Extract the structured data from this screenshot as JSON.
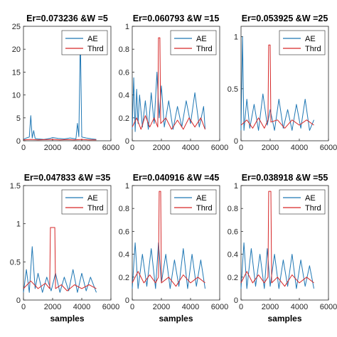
{
  "chart_data": [
    {
      "type": "line",
      "title": "Er=0.073236 &W =5",
      "xlabel": "",
      "ylabel": "",
      "xlim": [
        0,
        6000
      ],
      "ylim": [
        0,
        25
      ],
      "xticks": [
        "0",
        "2000",
        "4000",
        "6000"
      ],
      "yticks": [
        "0",
        "5",
        "10",
        "15",
        "20",
        "25"
      ],
      "legend": "top-right",
      "series": [
        {
          "name": "AE",
          "color": "#1f77b4",
          "points": [
            [
              0,
              0.3
            ],
            [
              200,
              0.6
            ],
            [
              400,
              0.8
            ],
            [
              500,
              5.5
            ],
            [
              600,
              0.6
            ],
            [
              700,
              2.2
            ],
            [
              800,
              0.5
            ],
            [
              1000,
              0.4
            ],
            [
              1400,
              0.3
            ],
            [
              1800,
              0.5
            ],
            [
              2000,
              0.7
            ],
            [
              2400,
              0.5
            ],
            [
              2800,
              0.4
            ],
            [
              3200,
              0.6
            ],
            [
              3600,
              0.4
            ],
            [
              3700,
              3.8
            ],
            [
              3800,
              0.9
            ],
            [
              3900,
              23.0
            ],
            [
              4000,
              0.8
            ],
            [
              4300,
              0.6
            ],
            [
              4700,
              0.4
            ],
            [
              5000,
              0.3
            ]
          ]
        },
        {
          "name": "Thrd",
          "color": "#d62728",
          "points": [
            [
              0,
              0.2
            ],
            [
              500,
              0.3
            ],
            [
              1000,
              0.2
            ],
            [
              1500,
              0.25
            ],
            [
              2000,
              0.3
            ],
            [
              2500,
              0.2
            ],
            [
              3000,
              0.25
            ],
            [
              3500,
              0.2
            ],
            [
              4000,
              0.3
            ],
            [
              4500,
              0.2
            ],
            [
              5000,
              0.2
            ]
          ]
        }
      ]
    },
    {
      "type": "line",
      "title": "Er=0.060793 &W =15",
      "xlabel": "",
      "ylabel": "",
      "xlim": [
        0,
        6000
      ],
      "ylim": [
        0,
        1
      ],
      "xticks": [
        "0",
        "2000",
        "4000",
        "6000"
      ],
      "yticks": [
        "0",
        "0.2",
        "0.4",
        "0.6",
        "0.8",
        "1"
      ],
      "legend": "top-right",
      "series": [
        {
          "name": "AE",
          "color": "#1f77b4",
          "points": [
            [
              0,
              0.1
            ],
            [
              100,
              0.55
            ],
            [
              200,
              0.08
            ],
            [
              300,
              0.45
            ],
            [
              400,
              0.15
            ],
            [
              500,
              0.4
            ],
            [
              700,
              0.12
            ],
            [
              900,
              0.35
            ],
            [
              1100,
              0.1
            ],
            [
              1300,
              0.42
            ],
            [
              1500,
              0.15
            ],
            [
              1700,
              0.6
            ],
            [
              1850,
              0.2
            ],
            [
              2000,
              0.48
            ],
            [
              2200,
              0.12
            ],
            [
              2500,
              0.35
            ],
            [
              2800,
              0.1
            ],
            [
              3100,
              0.3
            ],
            [
              3400,
              0.12
            ],
            [
              3700,
              0.35
            ],
            [
              4000,
              0.15
            ],
            [
              4300,
              0.42
            ],
            [
              4600,
              0.12
            ],
            [
              4900,
              0.3
            ],
            [
              5000,
              0.1
            ]
          ]
        },
        {
          "name": "Thrd",
          "color": "#d62728",
          "points": [
            [
              0,
              0.12
            ],
            [
              300,
              0.2
            ],
            [
              600,
              0.1
            ],
            [
              900,
              0.22
            ],
            [
              1200,
              0.12
            ],
            [
              1500,
              0.2
            ],
            [
              1750,
              0.12
            ],
            [
              1800,
              0.9
            ],
            [
              1900,
              0.9
            ],
            [
              1950,
              0.15
            ],
            [
              2300,
              0.2
            ],
            [
              2700,
              0.1
            ],
            [
              3100,
              0.18
            ],
            [
              3500,
              0.1
            ],
            [
              3900,
              0.2
            ],
            [
              4300,
              0.12
            ],
            [
              4700,
              0.2
            ],
            [
              5000,
              0.1
            ]
          ]
        }
      ]
    },
    {
      "type": "line",
      "title": "Er=0.053925 &W =25",
      "xlabel": "",
      "ylabel": "",
      "xlim": [
        0,
        6000
      ],
      "ylim": [
        0,
        1.1
      ],
      "xticks": [
        "0",
        "2000",
        "4000",
        "6000"
      ],
      "yticks": [
        "0",
        "0.5",
        "1"
      ],
      "legend": "top-right",
      "series": [
        {
          "name": "AE",
          "color": "#1f77b4",
          "points": [
            [
              0,
              0.1
            ],
            [
              100,
              1.0
            ],
            [
              200,
              0.1
            ],
            [
              400,
              0.4
            ],
            [
              600,
              0.12
            ],
            [
              900,
              0.35
            ],
            [
              1200,
              0.1
            ],
            [
              1500,
              0.45
            ],
            [
              1800,
              0.15
            ],
            [
              2000,
              0.3
            ],
            [
              2300,
              0.1
            ],
            [
              2600,
              0.4
            ],
            [
              2900,
              0.12
            ],
            [
              3200,
              0.3
            ],
            [
              3500,
              0.1
            ],
            [
              3800,
              0.35
            ],
            [
              4100,
              0.12
            ],
            [
              4400,
              0.4
            ],
            [
              4700,
              0.1
            ],
            [
              5000,
              0.2
            ]
          ]
        },
        {
          "name": "Thrd",
          "color": "#d62728",
          "points": [
            [
              0,
              0.15
            ],
            [
              400,
              0.2
            ],
            [
              800,
              0.12
            ],
            [
              1200,
              0.22
            ],
            [
              1600,
              0.12
            ],
            [
              1850,
              0.2
            ],
            [
              1900,
              0.92
            ],
            [
              2000,
              0.92
            ],
            [
              2050,
              0.18
            ],
            [
              2500,
              0.2
            ],
            [
              3000,
              0.12
            ],
            [
              3500,
              0.2
            ],
            [
              4000,
              0.15
            ],
            [
              4500,
              0.2
            ],
            [
              5000,
              0.15
            ]
          ]
        }
      ]
    },
    {
      "type": "line",
      "title": "Er=0.047833 &W =35",
      "xlabel": "samples",
      "ylabel": "",
      "xlim": [
        0,
        6000
      ],
      "ylim": [
        0,
        1.5
      ],
      "xticks": [
        "0",
        "2000",
        "4000",
        "6000"
      ],
      "yticks": [
        "0",
        "0.5",
        "1",
        "1.5"
      ],
      "legend": "top-right",
      "series": [
        {
          "name": "AE",
          "color": "#1f77b4",
          "points": [
            [
              0,
              0.1
            ],
            [
              200,
              0.4
            ],
            [
              400,
              0.1
            ],
            [
              600,
              0.7
            ],
            [
              800,
              0.15
            ],
            [
              1000,
              0.35
            ],
            [
              1300,
              0.1
            ],
            [
              1600,
              0.3
            ],
            [
              1900,
              0.12
            ],
            [
              2200,
              0.35
            ],
            [
              2500,
              0.1
            ],
            [
              2800,
              0.3
            ],
            [
              3100,
              0.12
            ],
            [
              3400,
              0.4
            ],
            [
              3700,
              0.1
            ],
            [
              4000,
              0.35
            ],
            [
              4300,
              0.12
            ],
            [
              4600,
              0.3
            ],
            [
              5000,
              0.1
            ]
          ]
        },
        {
          "name": "Thrd",
          "color": "#d62728",
          "points": [
            [
              0,
              0.15
            ],
            [
              500,
              0.25
            ],
            [
              1000,
              0.15
            ],
            [
              1500,
              0.22
            ],
            [
              1800,
              0.15
            ],
            [
              1850,
              0.95
            ],
            [
              2150,
              0.95
            ],
            [
              2200,
              0.15
            ],
            [
              2600,
              0.2
            ],
            [
              3000,
              0.12
            ],
            [
              3500,
              0.2
            ],
            [
              4000,
              0.15
            ],
            [
              4500,
              0.2
            ],
            [
              5000,
              0.15
            ]
          ]
        }
      ]
    },
    {
      "type": "line",
      "title": "Er=0.040916 &W =45",
      "xlabel": "samples",
      "ylabel": "",
      "xlim": [
        0,
        6000
      ],
      "ylim": [
        0,
        1
      ],
      "xticks": [
        "0",
        "2000",
        "4000",
        "6000"
      ],
      "yticks": [
        "0",
        "0.2",
        "0.4",
        "0.6",
        "0.8",
        "1"
      ],
      "legend": "top-right",
      "series": [
        {
          "name": "AE",
          "color": "#1f77b4",
          "points": [
            [
              0,
              0.1
            ],
            [
              200,
              0.5
            ],
            [
              400,
              0.1
            ],
            [
              700,
              0.4
            ],
            [
              1000,
              0.12
            ],
            [
              1300,
              0.45
            ],
            [
              1600,
              0.1
            ],
            [
              1800,
              0.5
            ],
            [
              2000,
              0.15
            ],
            [
              2300,
              0.4
            ],
            [
              2600,
              0.1
            ],
            [
              2900,
              0.35
            ],
            [
              3200,
              0.12
            ],
            [
              3500,
              0.45
            ],
            [
              3800,
              0.1
            ],
            [
              4100,
              0.4
            ],
            [
              4400,
              0.12
            ],
            [
              4700,
              0.35
            ],
            [
              5000,
              0.1
            ]
          ]
        },
        {
          "name": "Thrd",
          "color": "#d62728",
          "points": [
            [
              0,
              0.15
            ],
            [
              400,
              0.25
            ],
            [
              800,
              0.15
            ],
            [
              1200,
              0.22
            ],
            [
              1600,
              0.15
            ],
            [
              1800,
              0.2
            ],
            [
              1850,
              0.95
            ],
            [
              1950,
              0.95
            ],
            [
              2000,
              0.15
            ],
            [
              2500,
              0.2
            ],
            [
              3000,
              0.12
            ],
            [
              3500,
              0.22
            ],
            [
              4000,
              0.15
            ],
            [
              4500,
              0.2
            ],
            [
              5000,
              0.15
            ]
          ]
        }
      ]
    },
    {
      "type": "line",
      "title": "Er=0.038918 &W =55",
      "xlabel": "samples",
      "ylabel": "",
      "xlim": [
        0,
        6000
      ],
      "ylim": [
        0,
        1
      ],
      "xticks": [
        "0",
        "2000",
        "4000",
        "6000"
      ],
      "yticks": [
        "0",
        "0.2",
        "0.4",
        "0.6",
        "0.8",
        "1"
      ],
      "legend": "top-right",
      "series": [
        {
          "name": "AE",
          "color": "#1f77b4",
          "points": [
            [
              0,
              0.1
            ],
            [
              200,
              0.5
            ],
            [
              400,
              0.1
            ],
            [
              700,
              0.45
            ],
            [
              1000,
              0.12
            ],
            [
              1300,
              0.4
            ],
            [
              1600,
              0.1
            ],
            [
              1800,
              0.45
            ],
            [
              2000,
              0.12
            ],
            [
              2300,
              0.4
            ],
            [
              2600,
              0.1
            ],
            [
              2900,
              0.35
            ],
            [
              3200,
              0.12
            ],
            [
              3500,
              0.4
            ],
            [
              3800,
              0.1
            ],
            [
              4100,
              0.35
            ],
            [
              4400,
              0.12
            ],
            [
              4700,
              0.3
            ],
            [
              5000,
              0.1
            ]
          ]
        },
        {
          "name": "Thrd",
          "color": "#d62728",
          "points": [
            [
              0,
              0.15
            ],
            [
              400,
              0.25
            ],
            [
              800,
              0.15
            ],
            [
              1200,
              0.22
            ],
            [
              1600,
              0.15
            ],
            [
              1850,
              0.2
            ],
            [
              1900,
              0.95
            ],
            [
              2050,
              0.95
            ],
            [
              2100,
              0.15
            ],
            [
              2500,
              0.2
            ],
            [
              3000,
              0.12
            ],
            [
              3500,
              0.22
            ],
            [
              4000,
              0.15
            ],
            [
              4500,
              0.2
            ],
            [
              5000,
              0.15
            ]
          ]
        }
      ]
    }
  ]
}
